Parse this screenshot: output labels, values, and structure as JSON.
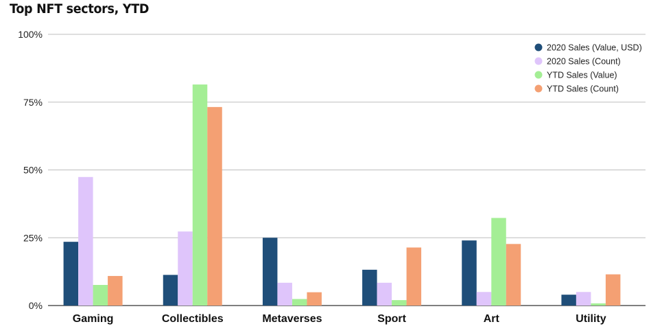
{
  "chart_data": {
    "type": "bar",
    "title": "Top NFT sectors, YTD",
    "xlabel": "",
    "ylabel": "",
    "ylim": [
      0,
      100
    ],
    "yticks": [
      "0%",
      "25%",
      "50%",
      "75%",
      "100%"
    ],
    "grid": true,
    "legend_position": "top-right",
    "categories": [
      "Gaming",
      "Collectibles",
      "Metaverses",
      "Sport",
      "Art",
      "Utility"
    ],
    "series": [
      {
        "name": "2020 Sales (Value, USD)",
        "color": "#1f4e79",
        "values": [
          23.5,
          11.3,
          25.0,
          13.2,
          24.0,
          4.0
        ]
      },
      {
        "name": "2020 Sales (Count)",
        "color": "#dfc5fb",
        "values": [
          47.4,
          27.3,
          8.4,
          8.4,
          5.0,
          5.0
        ]
      },
      {
        "name": "YTD Sales (Value)",
        "color": "#a4ee95",
        "values": [
          7.6,
          81.5,
          2.4,
          2.0,
          32.3,
          0.8
        ]
      },
      {
        "name": "YTD Sales (Count)",
        "color": "#f4a073",
        "values": [
          10.9,
          73.2,
          4.9,
          21.4,
          22.7,
          11.5
        ]
      }
    ]
  }
}
